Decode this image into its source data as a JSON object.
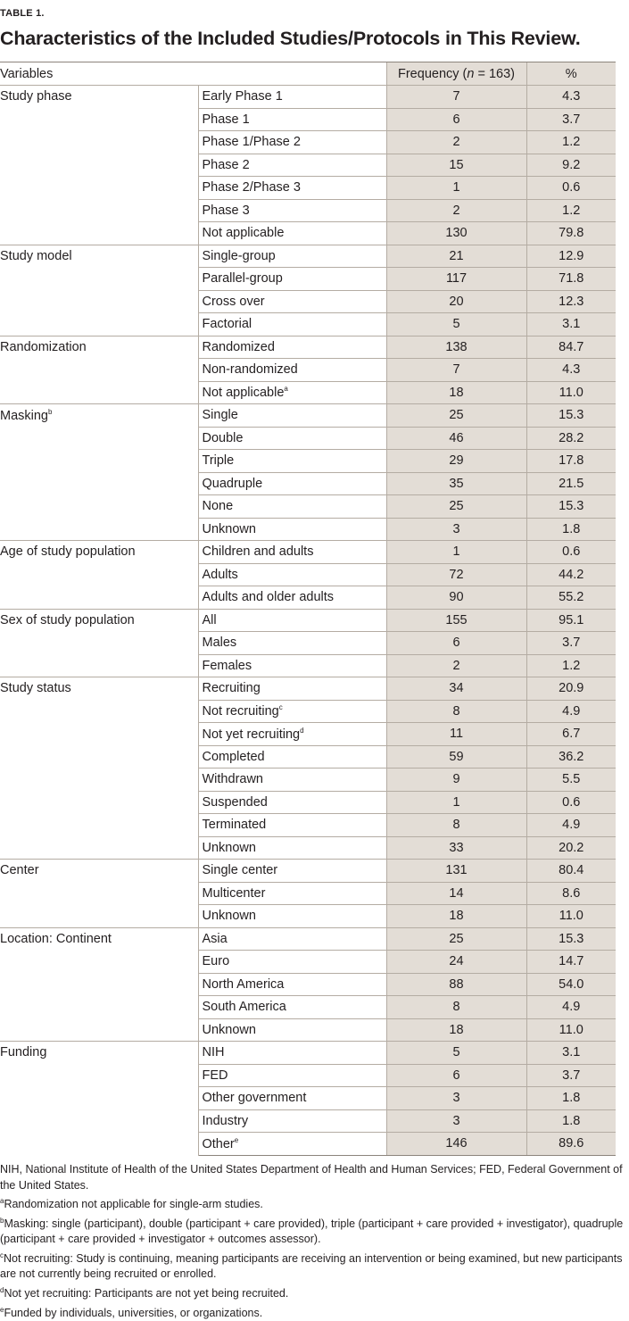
{
  "label": "TABLE 1.",
  "title": "Characteristics of the Included Studies/Protocols in This Review.",
  "header": {
    "variables": "Variables",
    "frequency": "Frequency (n = 163)",
    "percent": "%"
  },
  "groups": [
    {
      "name": "Study phase",
      "rows": [
        {
          "label": "Early Phase 1",
          "n": "7",
          "pct": "4.3"
        },
        {
          "label": "Phase 1",
          "n": "6",
          "pct": "3.7"
        },
        {
          "label": "Phase 1/Phase 2",
          "n": "2",
          "pct": "1.2"
        },
        {
          "label": "Phase 2",
          "n": "15",
          "pct": "9.2"
        },
        {
          "label": "Phase 2/Phase 3",
          "n": "1",
          "pct": "0.6"
        },
        {
          "label": "Phase 3",
          "n": "2",
          "pct": "1.2"
        },
        {
          "label": "Not applicable",
          "n": "130",
          "pct": "79.8"
        }
      ]
    },
    {
      "name": "Study model",
      "rows": [
        {
          "label": "Single-group",
          "n": "21",
          "pct": "12.9"
        },
        {
          "label": "Parallel-group",
          "n": "117",
          "pct": "71.8"
        },
        {
          "label": "Cross over",
          "n": "20",
          "pct": "12.3"
        },
        {
          "label": "Factorial",
          "n": "5",
          "pct": "3.1"
        }
      ]
    },
    {
      "name": "Randomization",
      "rows": [
        {
          "label": "Randomized",
          "n": "138",
          "pct": "84.7"
        },
        {
          "label": "Non-randomized",
          "n": "7",
          "pct": "4.3"
        },
        {
          "label": "Not applicable",
          "sup": "a",
          "n": "18",
          "pct": "11.0"
        }
      ]
    },
    {
      "name": "Masking",
      "sup": "b",
      "rows": [
        {
          "label": "Single",
          "n": "25",
          "pct": "15.3"
        },
        {
          "label": "Double",
          "n": "46",
          "pct": "28.2"
        },
        {
          "label": "Triple",
          "n": "29",
          "pct": "17.8"
        },
        {
          "label": "Quadruple",
          "n": "35",
          "pct": "21.5"
        },
        {
          "label": "None",
          "n": "25",
          "pct": "15.3"
        },
        {
          "label": "Unknown",
          "n": "3",
          "pct": "1.8"
        }
      ]
    },
    {
      "name": "Age of study population",
      "rows": [
        {
          "label": "Children and adults",
          "n": "1",
          "pct": "0.6"
        },
        {
          "label": "Adults",
          "n": "72",
          "pct": "44.2"
        },
        {
          "label": "Adults and older adults",
          "n": "90",
          "pct": "55.2"
        }
      ]
    },
    {
      "name": "Sex of study population",
      "rows": [
        {
          "label": "All",
          "n": "155",
          "pct": "95.1"
        },
        {
          "label": "Males",
          "n": "6",
          "pct": "3.7"
        },
        {
          "label": "Females",
          "n": "2",
          "pct": "1.2"
        }
      ]
    },
    {
      "name": "Study status",
      "rows": [
        {
          "label": "Recruiting",
          "n": "34",
          "pct": "20.9"
        },
        {
          "label": "Not recruiting",
          "sup": "c",
          "n": "8",
          "pct": "4.9"
        },
        {
          "label": "Not yet recruiting",
          "sup": "d",
          "n": "11",
          "pct": "6.7"
        },
        {
          "label": "Completed",
          "n": "59",
          "pct": "36.2"
        },
        {
          "label": "Withdrawn",
          "n": "9",
          "pct": "5.5"
        },
        {
          "label": "Suspended",
          "n": "1",
          "pct": "0.6"
        },
        {
          "label": "Terminated",
          "n": "8",
          "pct": "4.9"
        },
        {
          "label": "Unknown",
          "n": "33",
          "pct": "20.2"
        }
      ]
    },
    {
      "name": "Center",
      "rows": [
        {
          "label": "Single center",
          "n": "131",
          "pct": "80.4"
        },
        {
          "label": "Multicenter",
          "n": "14",
          "pct": "8.6"
        },
        {
          "label": "Unknown",
          "n": "18",
          "pct": "11.0"
        }
      ]
    },
    {
      "name": "Location: Continent",
      "rows": [
        {
          "label": "Asia",
          "n": "25",
          "pct": "15.3"
        },
        {
          "label": "Euro",
          "n": "24",
          "pct": "14.7"
        },
        {
          "label": "North America",
          "n": "88",
          "pct": "54.0"
        },
        {
          "label": "South America",
          "n": "8",
          "pct": "4.9"
        },
        {
          "label": "Unknown",
          "n": "18",
          "pct": "11.0"
        }
      ]
    },
    {
      "name": "Funding",
      "rows": [
        {
          "label": "NIH",
          "n": "5",
          "pct": "3.1"
        },
        {
          "label": "FED",
          "n": "6",
          "pct": "3.7"
        },
        {
          "label": "Other government",
          "n": "3",
          "pct": "1.8"
        },
        {
          "label": "Industry",
          "n": "3",
          "pct": "1.8"
        },
        {
          "label": "Other",
          "sup": "e",
          "n": "146",
          "pct": "89.6"
        }
      ]
    }
  ],
  "notes": {
    "abbrev": "NIH, National Institute of Health of the United States Department of Health and Human Services; FED, Federal Government of the United States.",
    "footnotes": [
      {
        "mark": "a",
        "text": "Randomization not applicable for single-arm studies."
      },
      {
        "mark": "b",
        "text": "Masking: single (participant), double (participant + care provided), triple (participant + care provided + investigator), quadruple (participant + care provided + investigator + outcomes assessor)."
      },
      {
        "mark": "c",
        "text": "Not recruiting: Study is continuing, meaning participants are receiving an intervention or being examined, but new participants are not currently being recruited or enrolled."
      },
      {
        "mark": "d",
        "text": "Not yet recruiting: Participants are not yet being recruited."
      },
      {
        "mark": "e",
        "text": "Funded by individuals, universities, or organizations."
      }
    ]
  }
}
